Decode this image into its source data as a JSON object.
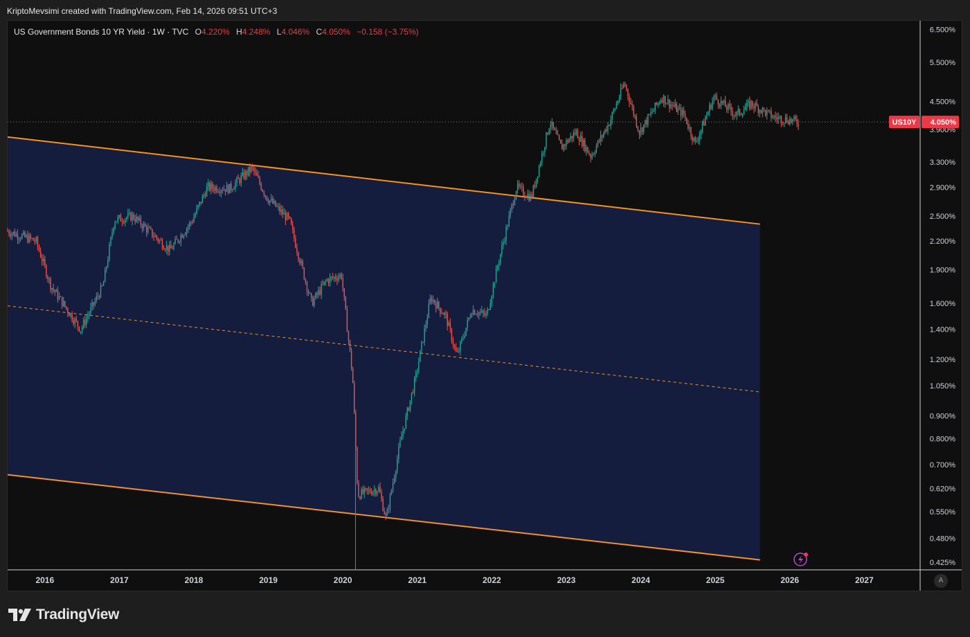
{
  "caption": "KriptoMevsimi created with TradingView.com, Feb 14, 2026 09:51 UTC+3",
  "legend": {
    "title": "US Government Bonds 10 YR Yield · 1W · TVC",
    "open_label": "O",
    "open": "4.220%",
    "high_label": "H",
    "high": "4.248%",
    "low_label": "L",
    "low": "4.046%",
    "close_label": "C",
    "close": "4.050%",
    "change": "−0.158 (−3.75%)"
  },
  "price_tag": {
    "symbol": "US10Y",
    "value": "4.050%"
  },
  "logo_text": "TradingView",
  "auto_label": "A",
  "colors": {
    "up": "#26a69a",
    "down": "#ef5350",
    "channel_fill": "#141d3d",
    "channel_line": "#f7931a",
    "price_tag": "#f23645"
  },
  "chart_data": {
    "type": "candlestick",
    "title": "US Government Bonds 10 YR Yield",
    "interval": "1W",
    "scale": "log",
    "ylim": [
      0.41,
      6.8
    ],
    "xlim": [
      2015.5,
      2027.75
    ],
    "y_ticks": [
      "6.500%",
      "5.500%",
      "4.500%",
      "3.900%",
      "3.300%",
      "2.900%",
      "2.500%",
      "2.200%",
      "1.900%",
      "1.600%",
      "1.400%",
      "1.200%",
      "1.050%",
      "0.900%",
      "0.800%",
      "0.700%",
      "0.620%",
      "0.550%",
      "0.480%",
      "0.425%"
    ],
    "x_ticks": [
      "2016",
      "2017",
      "2018",
      "2019",
      "2020",
      "2021",
      "2022",
      "2023",
      "2024",
      "2025",
      "2026",
      "2027"
    ],
    "last_price": 4.05,
    "price_path": [
      [
        2015.5,
        2.32
      ],
      [
        2015.9,
        2.2
      ],
      [
        2016.1,
        1.75
      ],
      [
        2016.5,
        1.4
      ],
      [
        2016.8,
        1.75
      ],
      [
        2016.95,
        2.45
      ],
      [
        2017.2,
        2.5
      ],
      [
        2017.5,
        2.25
      ],
      [
        2017.7,
        2.1
      ],
      [
        2018.0,
        2.45
      ],
      [
        2018.2,
        2.9
      ],
      [
        2018.5,
        2.88
      ],
      [
        2018.8,
        3.2
      ],
      [
        2019.0,
        2.75
      ],
      [
        2019.3,
        2.45
      ],
      [
        2019.6,
        1.6
      ],
      [
        2019.8,
        1.8
      ],
      [
        2020.0,
        1.85
      ],
      [
        2020.15,
        1.1
      ],
      [
        2020.22,
        0.6
      ],
      [
        2020.5,
        0.62
      ],
      [
        2020.6,
        0.53
      ],
      [
        2020.8,
        0.8
      ],
      [
        2021.0,
        1.1
      ],
      [
        2021.2,
        1.65
      ],
      [
        2021.4,
        1.5
      ],
      [
        2021.55,
        1.22
      ],
      [
        2021.75,
        1.55
      ],
      [
        2021.95,
        1.5
      ],
      [
        2022.1,
        1.95
      ],
      [
        2022.35,
        2.9
      ],
      [
        2022.55,
        2.75
      ],
      [
        2022.8,
        4.05
      ],
      [
        2022.95,
        3.55
      ],
      [
        2023.15,
        3.85
      ],
      [
        2023.35,
        3.4
      ],
      [
        2023.6,
        4.05
      ],
      [
        2023.8,
        4.95
      ],
      [
        2024.0,
        3.85
      ],
      [
        2024.3,
        4.6
      ],
      [
        2024.6,
        4.2
      ],
      [
        2024.75,
        3.62
      ],
      [
        2025.0,
        4.6
      ],
      [
        2025.3,
        4.2
      ],
      [
        2025.5,
        4.45
      ],
      [
        2025.8,
        4.15
      ],
      [
        2026.0,
        4.1
      ],
      [
        2026.12,
        4.05
      ]
    ],
    "channel": {
      "upper": [
        [
          2015.5,
          3.75
        ],
        [
          2025.6,
          2.4
        ]
      ],
      "lower": [
        [
          2015.5,
          0.665
        ],
        [
          2025.6,
          0.43
        ]
      ],
      "end_x": 2025.6
    }
  }
}
